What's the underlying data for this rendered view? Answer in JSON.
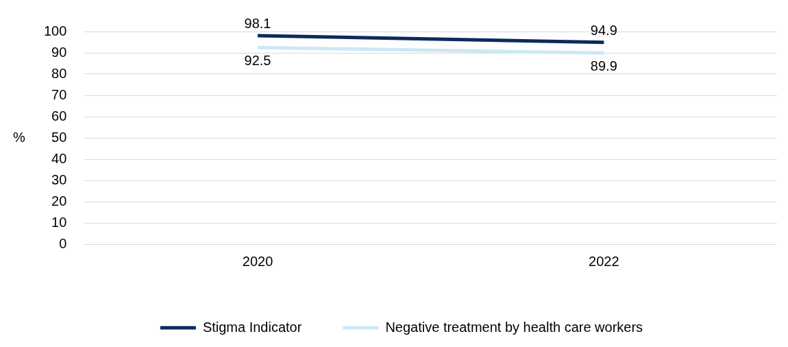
{
  "chart_data": {
    "type": "line",
    "ylabel": "%",
    "categories": [
      "2020",
      "2022"
    ],
    "series": [
      {
        "name": "Stigma Indicator",
        "color": "#0c2a5e",
        "values": [
          98.1,
          94.9
        ]
      },
      {
        "name": "Negative treatment by health care workers",
        "color": "#cce8f8",
        "values": [
          92.5,
          89.9
        ]
      }
    ],
    "ylim": [
      0,
      100
    ],
    "yticks": [
      0,
      10,
      20,
      30,
      40,
      50,
      60,
      70,
      80,
      90,
      100
    ],
    "grid": "y",
    "legend": "bottom",
    "data_labels": true,
    "marker": "none",
    "line_style": "solid"
  }
}
